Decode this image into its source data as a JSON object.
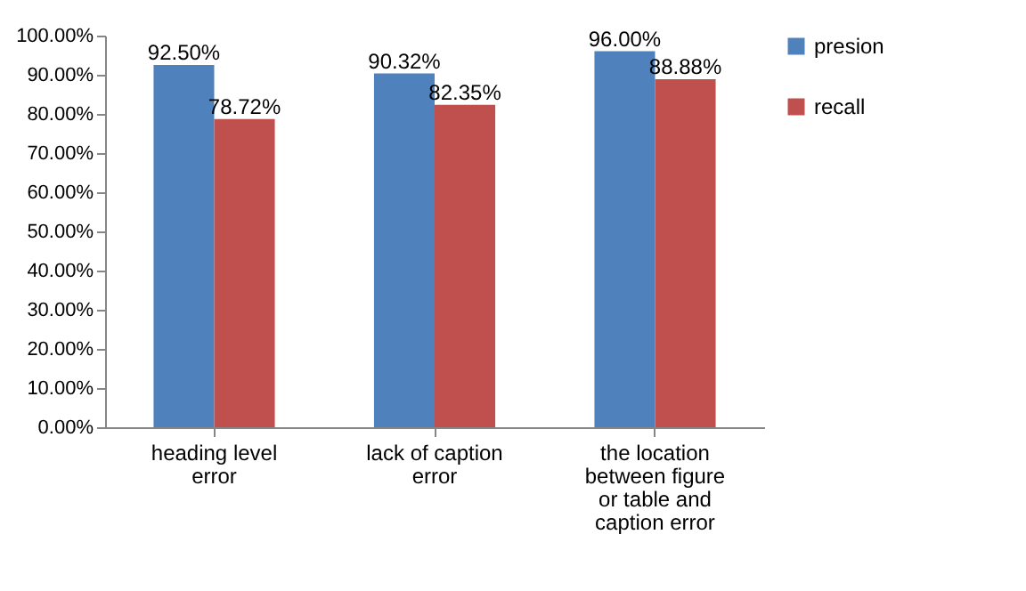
{
  "chart_data": {
    "type": "bar",
    "categories": [
      "heading level error",
      "lack of caption error",
      "the location between figure or table and caption error"
    ],
    "series": [
      {
        "name": "presion",
        "color": "#4f81bd",
        "values": [
          92.5,
          90.32,
          96.0
        ],
        "value_labels": [
          "92.50%",
          "90.32%",
          "96.00%"
        ]
      },
      {
        "name": "recall",
        "color": "#c0504d",
        "values": [
          78.72,
          82.35,
          88.88
        ],
        "value_labels": [
          "78.72%",
          "82.35%",
          "88.88%"
        ]
      }
    ],
    "ylim": [
      0,
      100
    ],
    "yticks": [
      {
        "value": 0,
        "label": "0.00%"
      },
      {
        "value": 10,
        "label": "10.00%"
      },
      {
        "value": 20,
        "label": "20.00%"
      },
      {
        "value": 30,
        "label": "30.00%"
      },
      {
        "value": 40,
        "label": "40.00%"
      },
      {
        "value": 50,
        "label": "50.00%"
      },
      {
        "value": 60,
        "label": "60.00%"
      },
      {
        "value": 70,
        "label": "70.00%"
      },
      {
        "value": 80,
        "label": "80.00%"
      },
      {
        "value": 90,
        "label": "90.00%"
      },
      {
        "value": 100,
        "label": "100.00%"
      }
    ],
    "grid": false,
    "legend": "right"
  }
}
